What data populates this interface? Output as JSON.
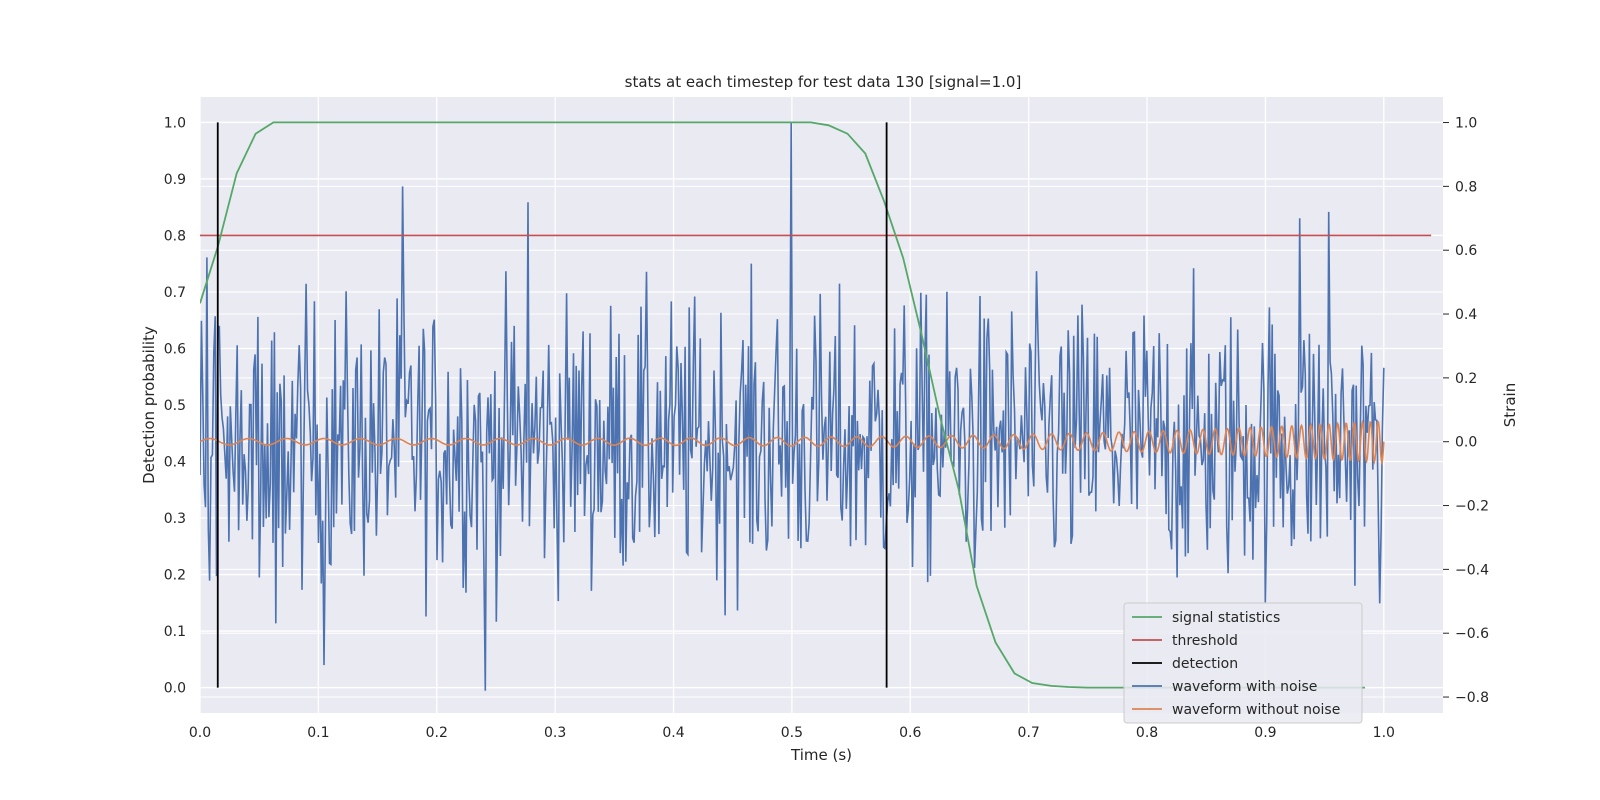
{
  "chart_data": {
    "type": "line",
    "title": "stats at each timestep for test data 130 [signal=1.0]",
    "xlabel": "Time (s)",
    "ylabel": "Detection probability",
    "y2label": "Strain",
    "xlim": [
      0.0,
      1.05
    ],
    "ylim": [
      -0.045,
      1.045
    ],
    "y2lim": [
      -0.85,
      1.08
    ],
    "xticks": [
      "0.0",
      "0.1",
      "0.2",
      "0.3",
      "0.4",
      "0.5",
      "0.6",
      "0.7",
      "0.8",
      "0.9",
      "1.0"
    ],
    "yticks": [
      "0.0",
      "0.1",
      "0.2",
      "0.3",
      "0.4",
      "0.5",
      "0.6",
      "0.7",
      "0.8",
      "0.9",
      "1.0"
    ],
    "y2ticks": [
      "−0.8",
      "−0.6",
      "−0.4",
      "−0.2",
      "0.0",
      "0.2",
      "0.4",
      "0.6",
      "0.8",
      "1.0"
    ],
    "grid": true,
    "legend_position": "lower right",
    "colors": {
      "background": "#eaeaf2",
      "grid": "#ffffff",
      "signal": "#55a868",
      "threshold": "#c44e52",
      "detection": "#000000",
      "noisy": "#4c72b0",
      "clean": "#dd8452"
    },
    "threshold": 0.8,
    "detections": [
      0.015,
      0.58
    ],
    "signal_statistics": {
      "name": "signal statistics",
      "x": [
        0.0,
        0.015,
        0.031,
        0.047,
        0.062,
        0.078,
        0.5,
        0.516,
        0.531,
        0.547,
        0.562,
        0.578,
        0.594,
        0.609,
        0.625,
        0.641,
        0.656,
        0.672,
        0.688,
        0.703,
        0.719,
        0.734,
        0.75,
        0.8,
        0.9,
        0.984
      ],
      "y": [
        0.68,
        0.78,
        0.91,
        0.98,
        1.0,
        1.0,
        1.0,
        1.0,
        0.995,
        0.98,
        0.945,
        0.86,
        0.76,
        0.63,
        0.48,
        0.35,
        0.18,
        0.08,
        0.025,
        0.008,
        0.003,
        0.001,
        0.0,
        0.0,
        0.0,
        0.0
      ]
    },
    "threshold_series": {
      "name": "threshold"
    },
    "detection_series": {
      "name": "detection"
    },
    "noisy_waveform": {
      "name": "waveform with noise",
      "x_range": [
        0.0,
        1.0
      ],
      "points": 860,
      "y_range": [
        -0.78,
        1.0
      ]
    },
    "clean_waveform": {
      "name": "waveform without noise",
      "x_range": [
        0.0,
        1.0
      ],
      "amplitude_start": 0.01,
      "amplitude_end": 0.065
    }
  }
}
